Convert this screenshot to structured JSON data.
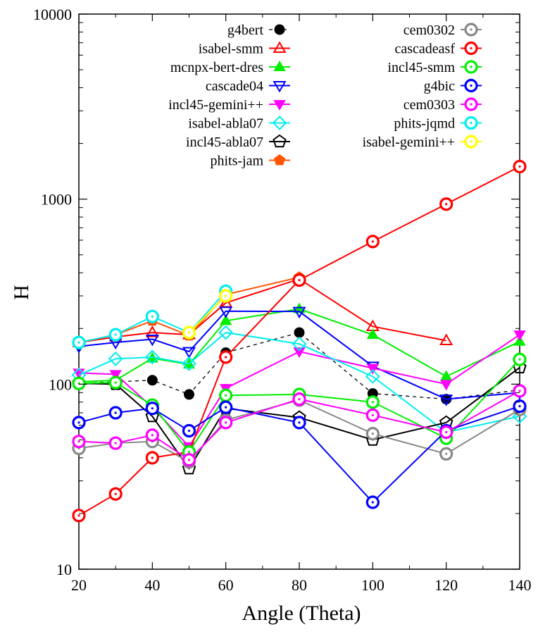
{
  "chart_data": {
    "type": "line",
    "title": "",
    "xlabel": "Angle (Theta)",
    "ylabel": "H",
    "x_scale": "linear",
    "y_scale": "log",
    "xlim": [
      20,
      140
    ],
    "ylim": [
      10,
      10000
    ],
    "x_ticks": [
      20,
      40,
      60,
      80,
      100,
      120,
      140
    ],
    "y_ticks": [
      10,
      100,
      1000,
      10000
    ],
    "x_tick_labels": [
      "20",
      "40",
      "60",
      "80",
      "100",
      "120",
      "140"
    ],
    "y_tick_labels": [
      "10",
      "100",
      "1000",
      "10000"
    ],
    "grid": false,
    "legend_position": "top",
    "series": [
      {
        "name": "g4bert",
        "color": "#000000",
        "marker": "filled-circle",
        "line": "dashed",
        "x": [
          20,
          30,
          40,
          50,
          60,
          80,
          100,
          120,
          140
        ],
        "y": [
          101,
          103,
          105,
          88,
          148,
          190,
          89,
          83,
          93
        ]
      },
      {
        "name": "isabel-smm",
        "color": "#ff0000",
        "marker": "open-triangle-up",
        "line": "solid",
        "x": [
          20,
          30,
          40,
          50,
          60,
          80,
          100,
          120
        ],
        "y": [
          168,
          180,
          190,
          185,
          275,
          370,
          205,
          172
        ]
      },
      {
        "name": "mcnpx-bert-dres",
        "color": "#00ee00",
        "marker": "filled-triangle-up",
        "line": "solid",
        "x": [
          20,
          30,
          40,
          50,
          60,
          80,
          100,
          120,
          140
        ],
        "y": [
          103,
          105,
          138,
          128,
          220,
          255,
          185,
          110,
          170
        ]
      },
      {
        "name": "cascade04",
        "color": "#0000ff",
        "marker": "open-triangle-down",
        "line": "solid",
        "x": [
          20,
          30,
          40,
          50,
          60,
          80,
          100,
          120,
          140
        ],
        "y": [
          160,
          168,
          175,
          150,
          248,
          247,
          125,
          83,
          90
        ]
      },
      {
        "name": "incl45-gemini++",
        "color": "#ff00ff",
        "marker": "filled-triangle-down",
        "line": "solid",
        "x": [
          20,
          30,
          40,
          50,
          60,
          80,
          100,
          120,
          140
        ],
        "y": [
          115,
          113,
          75,
          46,
          95,
          150,
          122,
          100,
          185
        ]
      },
      {
        "name": "isabel-abla07",
        "color": "#00eeee",
        "marker": "open-diamond",
        "line": "solid",
        "x": [
          20,
          30,
          40,
          50,
          60,
          80,
          100,
          120,
          140
        ],
        "y": [
          112,
          137,
          140,
          129,
          190,
          165,
          110,
          55,
          67
        ]
      },
      {
        "name": "incl45-abla07",
        "color": "#000000",
        "marker": "open-pentagon",
        "line": "solid",
        "x": [
          20,
          30,
          40,
          50,
          60,
          80,
          100,
          120,
          140
        ],
        "y": [
          101,
          100,
          67,
          35,
          74,
          66,
          50,
          62,
          123
        ]
      },
      {
        "name": "phits-jam",
        "color": "#ff5500",
        "marker": "filled-pentagon",
        "line": "solid",
        "x": [
          20,
          30,
          40,
          50,
          60,
          80
        ],
        "y": [
          168,
          185,
          220,
          183,
          305,
          378
        ]
      },
      {
        "name": "cem0302",
        "color": "#888888",
        "marker": "open-circle-thick",
        "line": "solid",
        "x": [
          20,
          30,
          40,
          50,
          60,
          80,
          100,
          120,
          140
        ],
        "y": [
          45,
          48,
          49,
          38,
          64,
          82,
          54,
          42,
          73
        ]
      },
      {
        "name": "cascadeasf",
        "color": "#ff0000",
        "marker": "open-circle-thick",
        "line": "solid",
        "x": [
          20,
          30,
          40,
          50,
          60,
          80,
          100,
          120,
          140
        ],
        "y": [
          19.5,
          25.5,
          40,
          43,
          140,
          365,
          590,
          940,
          1500
        ]
      },
      {
        "name": "incl45-smm",
        "color": "#00ee00",
        "marker": "open-circle-thick",
        "line": "solid",
        "x": [
          20,
          30,
          40,
          50,
          60,
          80,
          100,
          120,
          140
        ],
        "y": [
          101,
          102,
          77,
          43,
          87,
          88,
          80,
          51,
          136
        ]
      },
      {
        "name": "g4bic",
        "color": "#0000ff",
        "marker": "open-circle-thick",
        "line": "solid",
        "x": [
          20,
          30,
          40,
          50,
          60,
          80,
          100,
          120,
          140
        ],
        "y": [
          62,
          70,
          74,
          56,
          75,
          62,
          23,
          56,
          76
        ]
      },
      {
        "name": "cem0303",
        "color": "#ff00ff",
        "marker": "open-circle-thick",
        "line": "solid",
        "x": [
          20,
          30,
          40,
          50,
          60,
          80,
          100,
          120,
          140
        ],
        "y": [
          49,
          48,
          53,
          39,
          62,
          83,
          68,
          55,
          92
        ]
      },
      {
        "name": "phits-jqmd",
        "color": "#00eeee",
        "marker": "open-circle-thick",
        "line": "solid",
        "x": [
          20,
          30,
          40,
          50,
          60
        ],
        "y": [
          168,
          185,
          232,
          190,
          318
        ]
      },
      {
        "name": "isabel-gemini++",
        "color": "#ffff00",
        "marker": "open-circle-thick",
        "line": "solid",
        "x": [
          50,
          60
        ],
        "y": [
          190,
          300
        ]
      }
    ]
  }
}
